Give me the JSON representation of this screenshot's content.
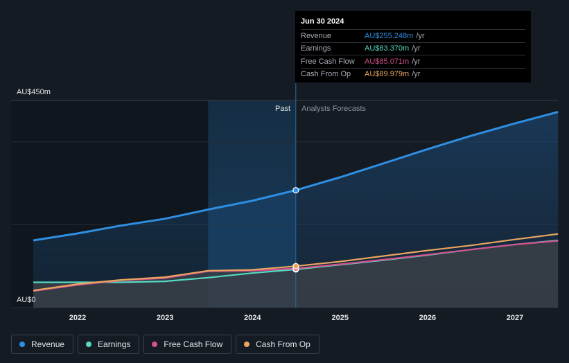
{
  "chart_data": {
    "type": "area",
    "y_axis": {
      "top_label": "AU$450m",
      "bottom_label": "AU$0",
      "ylim": [
        0,
        450
      ]
    },
    "x_ticks": [
      "2022",
      "2023",
      "2024",
      "2025",
      "2026",
      "2027"
    ],
    "regions": {
      "past_label": "Past",
      "forecast_label": "Analysts Forecasts"
    },
    "series": [
      {
        "name": "Revenue",
        "color": "#2f8fe3",
        "x": [
          "2021-06-30",
          "2021-12-31",
          "2022-06-30",
          "2022-12-31",
          "2023-06-30",
          "2023-12-31",
          "2024-06-30",
          "2024-12-31",
          "2025-06-30",
          "2025-12-31",
          "2026-06-30",
          "2026-12-31",
          "2027-06-30"
        ],
        "values": [
          146,
          161,
          178,
          193,
          213,
          232,
          255,
          283,
          313,
          344,
          373,
          400,
          425
        ]
      },
      {
        "name": "Earnings",
        "color": "#57d9c3",
        "x": [
          "2021-06-30",
          "2021-12-31",
          "2022-06-30",
          "2022-12-31",
          "2023-06-30",
          "2023-12-31",
          "2024-06-30",
          "2024-12-31",
          "2025-06-30",
          "2025-12-31",
          "2026-06-30",
          "2026-12-31",
          "2027-06-30"
        ],
        "values": [
          55,
          55,
          55,
          57,
          65,
          75,
          83,
          93,
          103,
          114,
          126,
          137,
          146
        ]
      },
      {
        "name": "Free Cash Flow",
        "color": "#d2508c",
        "x": [
          "2021-06-30",
          "2021-12-31",
          "2022-06-30",
          "2022-12-31",
          "2023-06-30",
          "2023-12-31",
          "2024-06-30",
          "2024-12-31",
          "2025-06-30",
          "2025-12-31",
          "2026-06-30",
          "2026-12-31",
          "2027-06-30"
        ],
        "values": [
          36,
          49,
          59,
          64,
          79,
          80,
          85,
          94,
          104,
          115,
          126,
          137,
          145
        ]
      },
      {
        "name": "Cash From Op",
        "color": "#e9a55e",
        "x": [
          "2021-06-30",
          "2021-12-31",
          "2022-06-30",
          "2022-12-31",
          "2023-06-30",
          "2023-12-31",
          "2024-06-30",
          "2024-12-31",
          "2025-06-30",
          "2025-12-31",
          "2026-06-30",
          "2026-12-31",
          "2027-06-30"
        ],
        "values": [
          37,
          51,
          60,
          66,
          80,
          82,
          90,
          100,
          112,
          124,
          135,
          148,
          160
        ]
      }
    ],
    "highlight_date": "2024-06-30",
    "grid": true,
    "legend_position": "bottom-left"
  },
  "tooltip": {
    "date": "Jun 30 2024",
    "rows": [
      {
        "label": "Revenue",
        "value": "AU$255.248m",
        "unit": "/yr",
        "color": "#2f8fe3"
      },
      {
        "label": "Earnings",
        "value": "AU$83.370m",
        "unit": "/yr",
        "color": "#57d9c3"
      },
      {
        "label": "Free Cash Flow",
        "value": "AU$85.071m",
        "unit": "/yr",
        "color": "#d2508c"
      },
      {
        "label": "Cash From Op",
        "value": "AU$89.979m",
        "unit": "/yr",
        "color": "#e9a55e"
      }
    ]
  },
  "legend": [
    {
      "label": "Revenue",
      "color": "#2f8fe3"
    },
    {
      "label": "Earnings",
      "color": "#57d9c3"
    },
    {
      "label": "Free Cash Flow",
      "color": "#d2508c"
    },
    {
      "label": "Cash From Op",
      "color": "#e9a55e"
    }
  ]
}
